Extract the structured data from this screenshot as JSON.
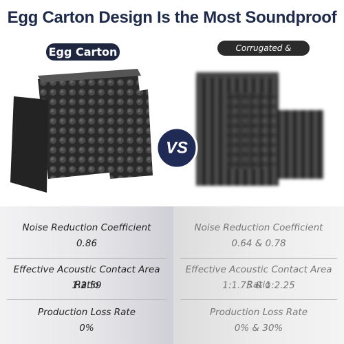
{
  "header": {
    "title": "Egg Carton Design Is the Most Soundproof"
  },
  "left": {
    "label": "Egg Carton",
    "rows": [
      {
        "metric": "Noise Reduction Coefficient",
        "value": "0.86"
      },
      {
        "metric": "Effective Acoustic Contact Area Ratio",
        "value": "1:2.59"
      },
      {
        "metric": "Production Loss Rate",
        "value": "0%"
      }
    ]
  },
  "versus": "VS",
  "right": {
    "label": "Corrugated & Pyramid",
    "rows": [
      {
        "metric": "Noise Reduction Coefficient",
        "value": "0.64 & 0.78"
      },
      {
        "metric": "Effective Acoustic Contact Area Ratio",
        "value": "1:1.75 & 1:2.25"
      },
      {
        "metric": "Production Loss Rate",
        "value": "0% & 30%"
      }
    ]
  }
}
